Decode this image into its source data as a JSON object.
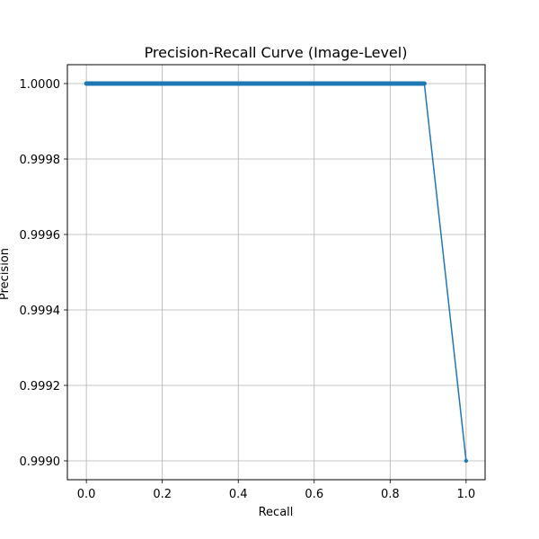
{
  "chart_data": {
    "type": "line",
    "title": "Precision-Recall Curve (Image-Level)",
    "xlabel": "Recall",
    "ylabel": "Precision",
    "xlim": [
      -0.05,
      1.05
    ],
    "ylim": [
      0.99895,
      1.00005
    ],
    "x_ticks": [
      0.0,
      0.2,
      0.4,
      0.6,
      0.8,
      1.0
    ],
    "x_tick_labels": [
      "0.0",
      "0.2",
      "0.4",
      "0.6",
      "0.8",
      "1.0"
    ],
    "y_ticks": [
      0.999,
      0.9992,
      0.9994,
      0.9996,
      0.9998,
      1.0
    ],
    "y_tick_labels": [
      "0.9990",
      "0.9992",
      "0.9994",
      "0.9996",
      "0.9998",
      "1.0000"
    ],
    "grid": true,
    "series": [
      {
        "color": "#1f77b4",
        "marker": "circle",
        "x": [
          0.0,
          0.05,
          0.1,
          0.15,
          0.2,
          0.25,
          0.3,
          0.35,
          0.4,
          0.45,
          0.5,
          0.55,
          0.6,
          0.65,
          0.7,
          0.75,
          0.8,
          0.85,
          0.89,
          1.0
        ],
        "y": [
          1.0,
          1.0,
          1.0,
          1.0,
          1.0,
          1.0,
          1.0,
          1.0,
          1.0,
          1.0,
          1.0,
          1.0,
          1.0,
          1.0,
          1.0,
          1.0,
          1.0,
          1.0,
          1.0,
          0.999
        ]
      }
    ]
  }
}
